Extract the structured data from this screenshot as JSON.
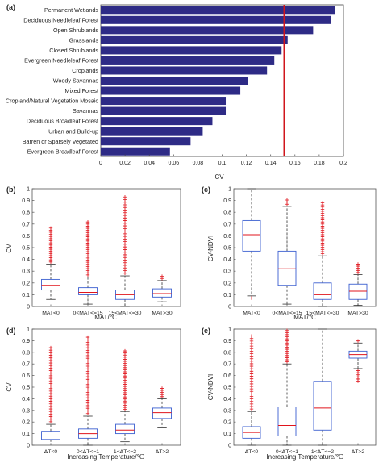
{
  "chart_data": [
    {
      "panel": "(a)",
      "type": "bar",
      "orientation": "horizontal",
      "xlabel": "CV",
      "xlim": [
        0,
        0.2
      ],
      "xticks": [
        "0",
        "0.02",
        "0.04",
        "0.06",
        "0.08",
        "0.1",
        "0.12",
        "0.14",
        "0.16",
        "0.18",
        "0.2"
      ],
      "categories": [
        "Permanent Wetlands",
        "Deciduous Needleleaf Forest",
        "Open Shrublands",
        "Grasslands",
        "Closed Shrublands",
        "Evergreen Needleleaf Forest",
        "Croplands",
        "Woody Savannas",
        "Mixed Forest",
        "Cropland/Natural Vegetation Mosaic",
        "Savannas",
        "Deciduous Broadleaf Forest",
        "Urban and Build-up",
        "Barren or Sparsely Vegetated",
        "Evergreen Broadleaf Forest"
      ],
      "values": [
        0.193,
        0.19,
        0.175,
        0.154,
        0.149,
        0.143,
        0.137,
        0.121,
        0.115,
        0.103,
        0.103,
        0.092,
        0.084,
        0.074,
        0.057
      ],
      "reference_line": 0.151,
      "bar_color": "#2e2b86",
      "line_color": "#d0161c"
    },
    {
      "panel": "(b)",
      "type": "box",
      "ylabel": "CV",
      "xlabel": "MAT/℃",
      "ylim": [
        0,
        1
      ],
      "yticks": [
        "0",
        "0.1",
        "0.2",
        "0.3",
        "0.4",
        "0.5",
        "0.6",
        "0.7",
        "0.8",
        "0.9",
        "1"
      ],
      "categories": [
        "MAT<0",
        "0<MAT<=15",
        "15<MAT<=30",
        "MAT>30"
      ],
      "boxes": [
        {
          "low": 0.06,
          "q1": 0.14,
          "median": 0.18,
          "q3": 0.23,
          "high": 0.36,
          "outliers_max": 0.67
        },
        {
          "low": 0.02,
          "q1": 0.1,
          "median": 0.12,
          "q3": 0.16,
          "high": 0.25,
          "outliers_max": 0.72
        },
        {
          "low": 0.0,
          "q1": 0.06,
          "median": 0.1,
          "q3": 0.14,
          "high": 0.26,
          "outliers_max": 0.93
        },
        {
          "low": 0.04,
          "q1": 0.08,
          "median": 0.11,
          "q3": 0.15,
          "high": 0.22,
          "outliers_max": 0.27
        }
      ]
    },
    {
      "panel": "(c)",
      "type": "box",
      "ylabel": "CV-NDVI",
      "xlabel": "MAT/℃",
      "ylim": [
        0,
        1
      ],
      "yticks": [
        "0",
        "0.1",
        "0.2",
        "0.3",
        "0.4",
        "0.5",
        "0.6",
        "0.7",
        "0.8",
        "0.9",
        "1"
      ],
      "categories": [
        "MAT<0",
        "0<MAT<=15",
        "15<MAT<=30",
        "MAT>30"
      ],
      "boxes": [
        {
          "low": 0.09,
          "q1": 0.47,
          "median": 0.61,
          "q3": 0.73,
          "high": 1.0,
          "outliers_min": 0.07
        },
        {
          "low": 0.02,
          "q1": 0.18,
          "median": 0.32,
          "q3": 0.47,
          "high": 0.85,
          "outliers_max": 0.91
        },
        {
          "low": 0.0,
          "q1": 0.06,
          "median": 0.1,
          "q3": 0.2,
          "high": 0.43,
          "outliers_max": 0.88
        },
        {
          "low": 0.01,
          "q1": 0.06,
          "median": 0.13,
          "q3": 0.19,
          "high": 0.27,
          "outliers_max": 0.36
        }
      ]
    },
    {
      "panel": "(d)",
      "type": "box",
      "ylabel": "CV",
      "xlabel": "Increasing Temperature/℃",
      "ylim": [
        0,
        1
      ],
      "yticks": [
        "0",
        "0.1",
        "0.2",
        "0.3",
        "0.4",
        "0.5",
        "0.6",
        "0.7",
        "0.8",
        "0.9",
        "1"
      ],
      "categories": [
        "ΔT<0",
        "0<ΔT<=1",
        "1<ΔT<=2",
        "ΔT>2"
      ],
      "boxes": [
        {
          "low": 0.01,
          "q1": 0.05,
          "median": 0.08,
          "q3": 0.12,
          "high": 0.18,
          "outliers_max": 0.84
        },
        {
          "low": 0.0,
          "q1": 0.06,
          "median": 0.1,
          "q3": 0.14,
          "high": 0.25,
          "outliers_max": 0.93
        },
        {
          "low": 0.03,
          "q1": 0.1,
          "median": 0.13,
          "q3": 0.18,
          "high": 0.29,
          "outliers_max": 0.82
        },
        {
          "low": 0.15,
          "q1": 0.23,
          "median": 0.28,
          "q3": 0.32,
          "high": 0.4,
          "outliers_max": 0.49
        }
      ]
    },
    {
      "panel": "(e)",
      "type": "box",
      "ylabel": "CV-NDVI",
      "xlabel": "Increasing Temperature/℃",
      "ylim": [
        0,
        1
      ],
      "yticks": [
        "0",
        "0.1",
        "0.2",
        "0.3",
        "0.4",
        "0.5",
        "0.6",
        "0.7",
        "0.8",
        "0.9",
        "1"
      ],
      "categories": [
        "ΔT<0",
        "0<ΔT<=1",
        "1<ΔT<=2",
        "ΔT>2"
      ],
      "boxes": [
        {
          "low": 0.0,
          "q1": 0.06,
          "median": 0.11,
          "q3": 0.16,
          "high": 0.29,
          "outliers_max": 0.94
        },
        {
          "low": 0.0,
          "q1": 0.08,
          "median": 0.17,
          "q3": 0.33,
          "high": 0.7,
          "outliers_max": 1.0
        },
        {
          "low": 0.0,
          "q1": 0.13,
          "median": 0.32,
          "q3": 0.55,
          "high": 1.0
        },
        {
          "low": 0.66,
          "q1": 0.75,
          "median": 0.78,
          "q3": 0.81,
          "high": 0.88,
          "outliers_min": 0.54,
          "outliers_max": 0.91
        }
      ]
    }
  ]
}
